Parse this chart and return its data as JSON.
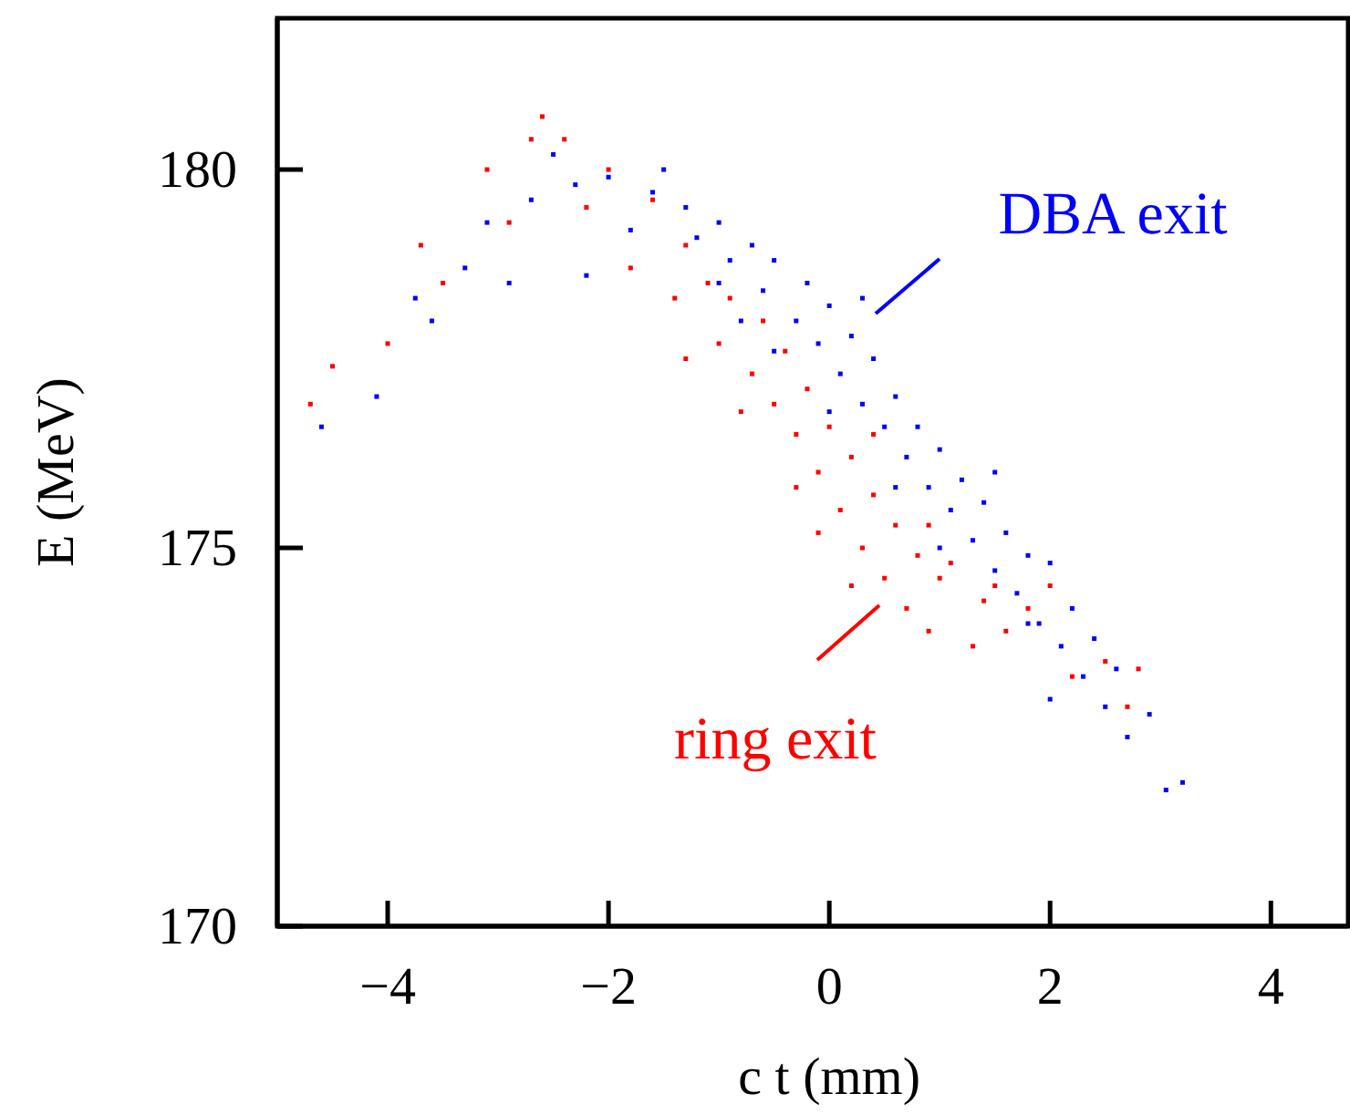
{
  "chart_data": {
    "type": "scatter",
    "xlabel": "c t (mm)",
    "ylabel": "E (MeV)",
    "xlim": [
      -5,
      4.7
    ],
    "ylim": [
      170,
      182
    ],
    "xticks": [
      -4,
      -2,
      0,
      2,
      4
    ],
    "yticks": [
      170,
      175,
      180
    ],
    "grid": false,
    "legend": "right",
    "marker": "square",
    "series": [
      {
        "name": "DBA exit",
        "color": "#0000ff",
        "x": [
          -4.6,
          -4.1,
          -3.75,
          -3.6,
          -3.3,
          -3.1,
          -2.9,
          -2.7,
          -2.5,
          -2.3,
          -2.2,
          -2.0,
          -1.8,
          -1.6,
          -1.5,
          -1.3,
          -1.2,
          -1.0,
          -0.9,
          -0.7,
          -0.6,
          -0.5,
          -0.3,
          -0.2,
          -0.1,
          0.0,
          0.1,
          0.2,
          0.3,
          0.4,
          0.5,
          0.6,
          0.7,
          0.8,
          0.9,
          1.0,
          1.1,
          1.2,
          1.3,
          1.4,
          1.5,
          1.6,
          1.7,
          1.8,
          1.9,
          2.0,
          2.1,
          2.2,
          2.3,
          2.4,
          2.5,
          2.6,
          2.7,
          2.9,
          3.05,
          3.2,
          -0.5,
          -0.8,
          0.3,
          1.5,
          1.0,
          2.0,
          0.0,
          -1.0,
          0.6,
          1.8
        ],
        "values": [
          176.6,
          177.0,
          178.3,
          178.0,
          178.7,
          179.3,
          178.5,
          179.6,
          180.2,
          179.8,
          178.6,
          179.9,
          179.2,
          179.7,
          180.0,
          179.5,
          179.1,
          179.3,
          178.8,
          179.0,
          178.4,
          178.8,
          178.0,
          178.5,
          177.7,
          178.2,
          177.3,
          177.8,
          176.9,
          177.5,
          176.6,
          177.0,
          176.2,
          176.6,
          175.8,
          176.3,
          175.5,
          175.9,
          175.1,
          175.6,
          174.7,
          175.2,
          174.4,
          174.9,
          174.0,
          174.8,
          173.7,
          174.2,
          173.3,
          173.8,
          172.9,
          173.4,
          172.5,
          172.8,
          171.8,
          171.9,
          177.6,
          178.0,
          178.3,
          176.0,
          175.0,
          173.0,
          176.8,
          178.5,
          175.8,
          174.0
        ]
      },
      {
        "name": "ring exit",
        "color": "#ff0000",
        "x": [
          -4.7,
          -4.5,
          -4.0,
          -3.7,
          -3.5,
          -3.1,
          -2.9,
          -2.7,
          -2.6,
          -2.4,
          -2.2,
          -2.0,
          -1.8,
          -1.6,
          -1.4,
          -1.3,
          -1.1,
          -1.0,
          -0.9,
          -0.7,
          -0.6,
          -0.5,
          -0.4,
          -0.3,
          -0.2,
          -0.1,
          0.0,
          0.1,
          0.2,
          0.3,
          0.4,
          0.5,
          0.6,
          0.7,
          0.8,
          0.9,
          1.0,
          1.1,
          1.3,
          1.4,
          1.6,
          1.8,
          2.0,
          2.2,
          2.5,
          2.7,
          2.8,
          -0.3,
          -0.1,
          0.2,
          0.9,
          -1.3,
          -0.8,
          0.4,
          1.5
        ],
        "values": [
          176.9,
          177.4,
          177.7,
          179.0,
          178.5,
          180.0,
          179.3,
          180.4,
          180.7,
          180.4,
          179.5,
          180.0,
          178.7,
          179.6,
          178.3,
          179.0,
          178.5,
          177.7,
          178.3,
          177.3,
          178.0,
          176.9,
          177.6,
          176.5,
          177.1,
          176.0,
          176.6,
          175.5,
          176.2,
          175.0,
          175.7,
          174.6,
          175.3,
          174.2,
          174.9,
          173.9,
          174.6,
          174.8,
          173.7,
          174.3,
          173.9,
          174.2,
          174.5,
          173.3,
          173.5,
          172.9,
          173.4,
          175.8,
          175.2,
          174.5,
          175.3,
          177.5,
          176.8,
          176.5,
          174.5
        ]
      }
    ]
  }
}
